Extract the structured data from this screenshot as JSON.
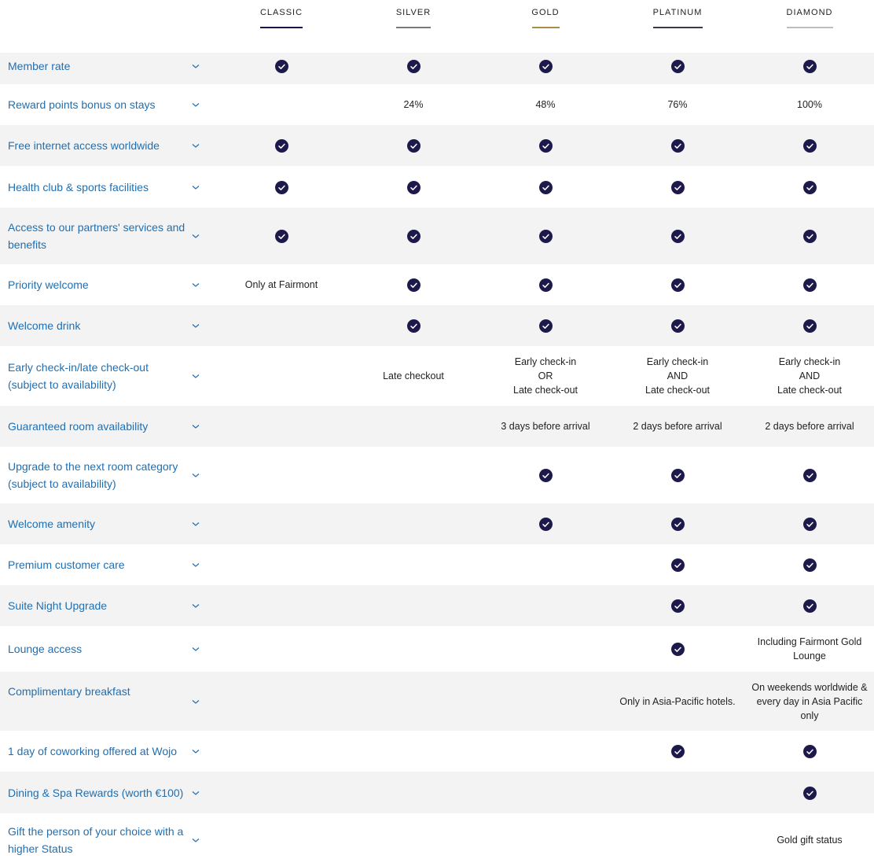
{
  "colors": {
    "check": "#1d1a4b",
    "label": "#1f6fb2",
    "row_alt": "#f3f3f3"
  },
  "tiers": [
    {
      "label": "CLASSIC",
      "color": "#1b1545"
    },
    {
      "label": "SILVER",
      "color": "#7a7a7a"
    },
    {
      "label": "GOLD",
      "color": "#b08d45"
    },
    {
      "label": "PLATINUM",
      "color": "#3a3a45"
    },
    {
      "label": "DIAMOND",
      "color": "#bdbdbd"
    }
  ],
  "rows": [
    {
      "label": "Member rate",
      "values": [
        "check",
        "check",
        "check",
        "check",
        "check"
      ]
    },
    {
      "label": "Reward points bonus on stays",
      "values": [
        "",
        "24%",
        "48%",
        "76%",
        "100%"
      ]
    },
    {
      "label": "Free internet access worldwide",
      "values": [
        "check",
        "check",
        "check",
        "check",
        "check"
      ]
    },
    {
      "label": "Health club & sports facilities",
      "values": [
        "check",
        "check",
        "check",
        "check",
        "check"
      ]
    },
    {
      "label": "Access to our partners' services and benefits",
      "values": [
        "check",
        "check",
        "check",
        "check",
        "check"
      ]
    },
    {
      "label": "Priority welcome",
      "values": [
        "Only at Fairmont",
        "check",
        "check",
        "check",
        "check"
      ]
    },
    {
      "label": "Welcome drink",
      "values": [
        "",
        "check",
        "check",
        "check",
        "check"
      ]
    },
    {
      "label": "Early check-in/late check-out (subject to availability)",
      "values": [
        "",
        "Late checkout",
        "Early check-in\nOR\nLate check-out",
        "Early check-in\nAND\nLate check-out",
        "Early check-in\nAND\nLate check-out"
      ]
    },
    {
      "label": "Guaranteed room availability",
      "values": [
        "",
        "",
        "3 days before arrival",
        "2 days before arrival",
        "2 days before arrival"
      ]
    },
    {
      "label": "Upgrade to the next room category (subject to availability)",
      "values": [
        "",
        "",
        "check",
        "check",
        "check"
      ]
    },
    {
      "label": "Welcome amenity",
      "values": [
        "",
        "",
        "check",
        "check",
        "check"
      ]
    },
    {
      "label": "Premium customer care",
      "values": [
        "",
        "",
        "",
        "check",
        "check"
      ]
    },
    {
      "label": "Suite Night Upgrade",
      "values": [
        "",
        "",
        "",
        "check",
        "check"
      ]
    },
    {
      "label": "Lounge access",
      "values": [
        "",
        "",
        "",
        "check",
        "Including Fairmont Gold Lounge"
      ]
    },
    {
      "label": "Complimentary breakfast",
      "values": [
        "",
        "",
        "",
        "Only in Asia-Pacific hotels.",
        "On weekends worldwide & every day in Asia Pacific only"
      ]
    },
    {
      "label": "1 day of coworking offered at Wojo",
      "values": [
        "",
        "",
        "",
        "check",
        "check"
      ]
    },
    {
      "label": "Dining & Spa Rewards (worth €100)",
      "values": [
        "",
        "",
        "",
        "",
        "check"
      ]
    },
    {
      "label": "Gift the person of your choice with a higher Status",
      "values": [
        "",
        "",
        "",
        "",
        "Gold gift status"
      ]
    }
  ]
}
